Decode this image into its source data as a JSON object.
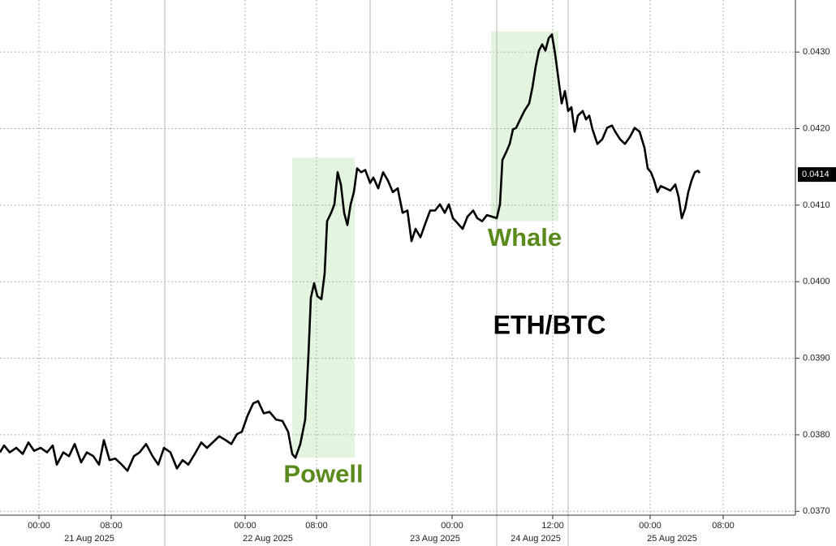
{
  "chart_data": {
    "type": "line",
    "title": "ETH/BTC",
    "color": "#000000",
    "grid": true,
    "xlim": [
      0,
      98
    ],
    "ylim": [
      0.03695,
      0.04368
    ],
    "yticks": [
      {
        "value": 0.037,
        "label": "0.0370"
      },
      {
        "value": 0.038,
        "label": "0.0380"
      },
      {
        "value": 0.039,
        "label": "0.0390"
      },
      {
        "value": 0.04,
        "label": "0.0400"
      },
      {
        "value": 0.041,
        "label": "0.0410"
      },
      {
        "value": 0.042,
        "label": "0.0420"
      },
      {
        "value": 0.043,
        "label": "0.0430"
      }
    ],
    "xticks": [
      {
        "value": 4.8,
        "label": "00:00"
      },
      {
        "value": 13.7,
        "label": "08:00"
      },
      {
        "value": 30.2,
        "label": "00:00"
      },
      {
        "value": 39.0,
        "label": "08:00"
      },
      {
        "value": 55.7,
        "label": "00:00"
      },
      {
        "value": 68.1,
        "label": "12:00"
      },
      {
        "value": 80.1,
        "label": "00:00"
      },
      {
        "value": 89.1,
        "label": "08:00"
      }
    ],
    "xdates": [
      {
        "value": 11.0,
        "label": "21 Aug 2025"
      },
      {
        "value": 33.0,
        "label": "22 Aug 2025"
      },
      {
        "value": 53.6,
        "label": "23 Aug 2025"
      },
      {
        "value": 66.0,
        "label": "24 Aug 2025"
      },
      {
        "value": 82.8,
        "label": "25 Aug 2025"
      }
    ],
    "xbreaks": [
      20.3,
      45.6,
      61.2,
      70.0
    ],
    "last_value": {
      "value": 0.0414,
      "label": "0.0414"
    },
    "highlights": [
      {
        "label": "Powell",
        "x": [
          36.0,
          43.7
        ],
        "y": [
          0.0377,
          0.04162
        ],
        "color": "#e4f5df",
        "text_color": "#5b8a1c"
      },
      {
        "label": "Whale",
        "x": [
          60.5,
          68.8
        ],
        "y": [
          0.04079,
          0.04327
        ],
        "color": "#e4f5df",
        "text_color": "#5b8a1c"
      }
    ],
    "x": [
      0,
      0.5,
      1.2,
      2.0,
      2.8,
      3.5,
      4.2,
      5.0,
      5.8,
      6.5,
      7.0,
      7.8,
      8.5,
      9.2,
      10.0,
      10.7,
      11.5,
      12.2,
      12.8,
      13.5,
      14.2,
      15.0,
      15.7,
      16.5,
      17.2,
      18.0,
      18.8,
      19.5,
      20.2,
      21.0,
      21.8,
      22.5,
      23.2,
      24.0,
      24.8,
      25.5,
      26.2,
      27.0,
      27.8,
      28.5,
      29.2,
      29.8,
      30.5,
      31.2,
      31.8,
      32.5,
      33.2,
      34.0,
      34.8,
      35.5,
      36.0,
      36.4,
      37.0,
      37.6,
      38.0,
      38.3,
      38.7,
      39.1,
      39.6,
      40.0,
      40.3,
      40.8,
      41.2,
      41.6,
      42.0,
      42.4,
      42.8,
      43.2,
      43.6,
      44.0,
      44.5,
      45.0,
      45.6,
      46.0,
      46.6,
      47.2,
      47.8,
      48.4,
      49.0,
      49.6,
      50.2,
      50.7,
      51.2,
      51.8,
      52.4,
      53.0,
      53.6,
      54.2,
      54.8,
      55.3,
      55.8,
      56.4,
      57.0,
      57.6,
      58.3,
      58.8,
      59.4,
      60.0,
      60.6,
      61.2,
      61.6,
      61.9,
      62.4,
      62.8,
      63.2,
      63.6,
      64.0,
      64.6,
      65.2,
      65.6,
      66.0,
      66.4,
      66.8,
      67.2,
      67.6,
      68.0,
      68.4,
      68.8,
      69.2,
      69.6,
      70.0,
      70.4,
      70.8,
      71.2,
      71.8,
      72.2,
      72.6,
      73.0,
      73.6,
      74.2,
      74.8,
      75.4,
      75.8,
      76.4,
      77.0,
      77.6,
      78.2,
      78.8,
      79.4,
      79.8,
      80.2,
      80.6,
      81.0,
      81.4,
      82.0,
      82.6,
      83.2,
      83.6,
      84.0,
      84.4,
      84.8,
      85.2,
      85.6,
      86.0,
      86.2
    ],
    "values": [
      0.03777,
      0.03786,
      0.03777,
      0.03783,
      0.03775,
      0.0379,
      0.03779,
      0.03783,
      0.03777,
      0.03786,
      0.03761,
      0.03777,
      0.03772,
      0.03788,
      0.03764,
      0.03777,
      0.03772,
      0.03761,
      0.03793,
      0.03767,
      0.03769,
      0.03761,
      0.03753,
      0.03772,
      0.03777,
      0.03788,
      0.03772,
      0.03761,
      0.03783,
      0.03777,
      0.03756,
      0.03767,
      0.03761,
      0.03775,
      0.0379,
      0.03783,
      0.0379,
      0.03798,
      0.03793,
      0.03788,
      0.03801,
      0.03804,
      0.03825,
      0.03841,
      0.03844,
      0.03828,
      0.0383,
      0.0382,
      0.03818,
      0.03804,
      0.03775,
      0.0377,
      0.03788,
      0.0382,
      0.03904,
      0.03979,
      0.03998,
      0.03981,
      0.03977,
      0.04011,
      0.04079,
      0.0409,
      0.04101,
      0.04143,
      0.04127,
      0.0409,
      0.04074,
      0.04101,
      0.04117,
      0.04148,
      0.04143,
      0.04146,
      0.04129,
      0.04136,
      0.04122,
      0.04143,
      0.04132,
      0.04117,
      0.04122,
      0.0409,
      0.04093,
      0.04053,
      0.04069,
      0.04058,
      0.04076,
      0.04093,
      0.04093,
      0.04101,
      0.0409,
      0.04101,
      0.04083,
      0.04076,
      0.04069,
      0.04085,
      0.04093,
      0.04083,
      0.04079,
      0.04087,
      0.04085,
      0.04083,
      0.04101,
      0.04159,
      0.0417,
      0.0418,
      0.04199,
      0.04201,
      0.0421,
      0.04223,
      0.04233,
      0.04254,
      0.04281,
      0.04302,
      0.0431,
      0.04302,
      0.04318,
      0.04323,
      0.04297,
      0.04265,
      0.04233,
      0.04249,
      0.04223,
      0.04228,
      0.04196,
      0.04217,
      0.04223,
      0.04212,
      0.04217,
      0.04199,
      0.0418,
      0.04186,
      0.04201,
      0.04204,
      0.04196,
      0.04186,
      0.0418,
      0.04189,
      0.04201,
      0.04196,
      0.04175,
      0.04148,
      0.04143,
      0.04132,
      0.04117,
      0.04125,
      0.04122,
      0.04119,
      0.04127,
      0.04111,
      0.04083,
      0.04095,
      0.04117,
      0.04132,
      0.04143,
      0.04145,
      0.04142
    ]
  }
}
